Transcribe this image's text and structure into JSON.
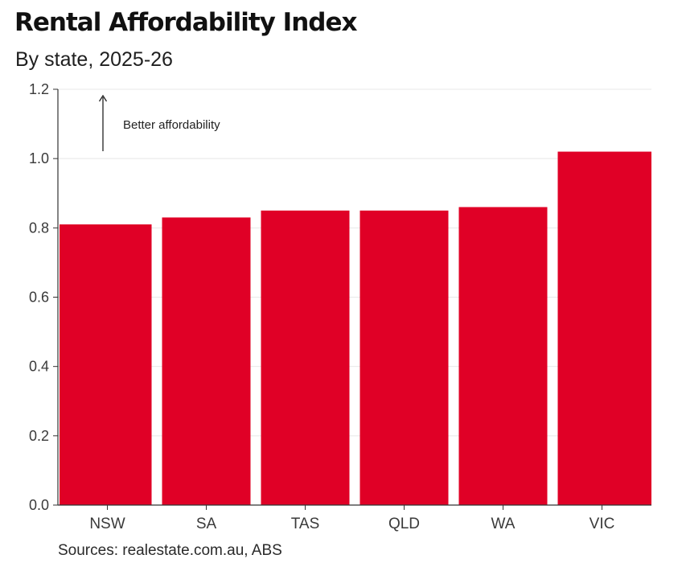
{
  "header": {
    "title": "Rental Affordability Index",
    "subtitle": "By state, 2025-26"
  },
  "footer": {
    "source": "Sources: realestate.com.au, ABS"
  },
  "colors": {
    "bar": "#E00026",
    "gridline": "#e8e8e8",
    "axis": "#333333"
  },
  "chart_data": {
    "type": "bar",
    "title": "Rental Affordability Index",
    "subtitle": "By state, 2025-26",
    "categories": [
      "NSW",
      "SA",
      "TAS",
      "QLD",
      "WA",
      "VIC"
    ],
    "values": [
      0.81,
      0.83,
      0.85,
      0.85,
      0.86,
      1.02
    ],
    "ylim": [
      0,
      1.2
    ],
    "yticks": [
      "0.0",
      "0.2",
      "0.4",
      "0.6",
      "0.8",
      "1.0",
      "1.2"
    ],
    "xlabel": "",
    "ylabel": "",
    "grid": true,
    "legend": "none",
    "annotation": "Better affordability"
  }
}
